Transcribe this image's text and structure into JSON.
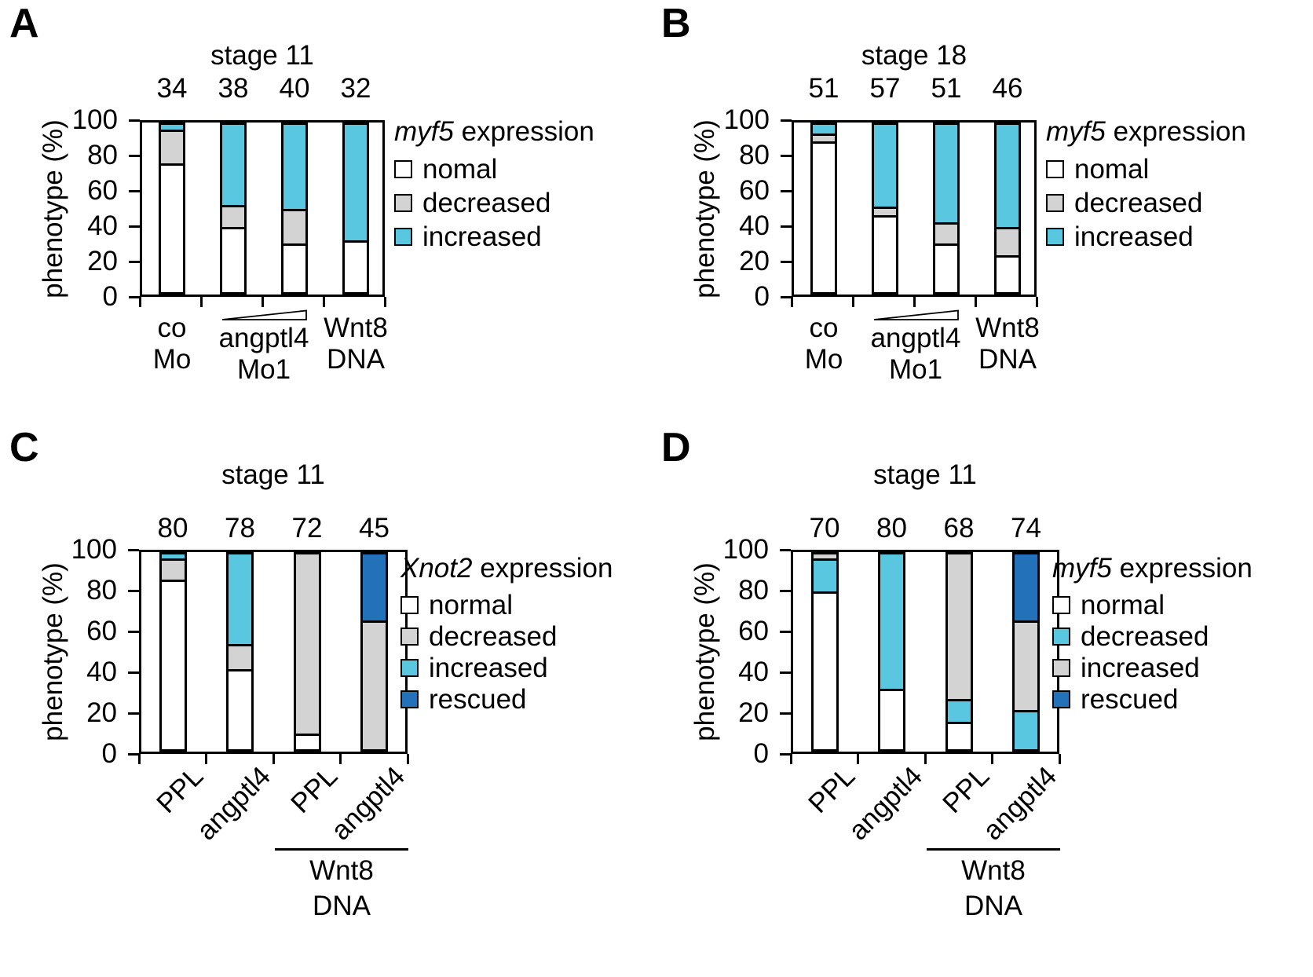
{
  "figure": {
    "y_axis_label": "phenotype (%)",
    "y_ticks": [
      0,
      20,
      40,
      60,
      80,
      100
    ]
  },
  "colors": {
    "normal": "#ffffff",
    "gray": "#d3d3d3",
    "cyan": "#59c7e0",
    "blue": "#2371b8",
    "line": "#000000"
  },
  "panels": [
    {
      "letter": "A",
      "title": "stage 11",
      "layout": "upper",
      "ylabel": "phenotype (%)",
      "legend": {
        "gene": "myf5",
        "rest": " expression",
        "items": [
          {
            "label": "nomal",
            "color": "#ffffff"
          },
          {
            "label": "decreased",
            "color": "#d3d3d3"
          },
          {
            "label": "increased",
            "color": "#59c7e0"
          }
        ]
      },
      "x_axis": {
        "type": "groups",
        "groups": [
          {
            "lines": [
              "co",
              "Mo"
            ],
            "slots": [
              0
            ],
            "ramp": false
          },
          {
            "lines": [
              "angptl4",
              "Mo1"
            ],
            "slots": [
              1,
              2
            ],
            "ramp": true
          },
          {
            "lines": [
              "Wnt8",
              "DNA"
            ],
            "slots": [
              3
            ],
            "ramp": false
          }
        ]
      },
      "chart_data": {
        "type": "bar",
        "stacked": true,
        "title": "stage 11",
        "xlabel": "",
        "ylabel": "phenotype (%)",
        "ylim": [
          0,
          100
        ],
        "grid": false,
        "legend_position": "right",
        "categories": [
          "co Mo",
          "angptl4 Mo1 (low dose)",
          "angptl4 Mo1 (high dose)",
          "Wnt8 DNA"
        ],
        "n_values": [
          34,
          38,
          40,
          32
        ],
        "series": [
          {
            "name": "nomal",
            "color": "#ffffff",
            "values": [
              77,
              39,
              29,
              31
            ]
          },
          {
            "name": "decreased",
            "color": "#d3d3d3",
            "values": [
              20,
              13,
              21,
              0
            ]
          },
          {
            "name": "increased",
            "color": "#59c7e0",
            "values": [
              3,
              48,
              50,
              69
            ]
          }
        ]
      }
    },
    {
      "letter": "B",
      "title": "stage 18",
      "layout": "upper",
      "ylabel": "phenotype (%)",
      "legend": {
        "gene": "myf5",
        "rest": " expression",
        "items": [
          {
            "label": "nomal",
            "color": "#ffffff"
          },
          {
            "label": "decreased",
            "color": "#d3d3d3"
          },
          {
            "label": "increased",
            "color": "#59c7e0"
          }
        ]
      },
      "x_axis": {
        "type": "groups",
        "groups": [
          {
            "lines": [
              "co",
              "Mo"
            ],
            "slots": [
              0
            ],
            "ramp": false
          },
          {
            "lines": [
              "angptl4",
              "Mo1"
            ],
            "slots": [
              1,
              2
            ],
            "ramp": true
          },
          {
            "lines": [
              "Wnt8",
              "DNA"
            ],
            "slots": [
              3
            ],
            "ramp": false
          }
        ]
      },
      "chart_data": {
        "type": "bar",
        "stacked": true,
        "title": "stage 18",
        "xlabel": "",
        "ylabel": "phenotype (%)",
        "ylim": [
          0,
          100
        ],
        "grid": false,
        "legend_position": "right",
        "categories": [
          "co Mo",
          "angptl4 Mo1 (low dose)",
          "angptl4 Mo1 (high dose)",
          "Wnt8 DNA"
        ],
        "n_values": [
          51,
          57,
          51,
          46
        ],
        "series": [
          {
            "name": "nomal",
            "color": "#ffffff",
            "values": [
              90,
              46,
              29,
              22
            ]
          },
          {
            "name": "decreased",
            "color": "#d3d3d3",
            "values": [
              5,
              5,
              13,
              17
            ]
          },
          {
            "name": "increased",
            "color": "#59c7e0",
            "values": [
              5,
              49,
              58,
              61
            ]
          }
        ]
      }
    },
    {
      "letter": "C",
      "title": "stage 11",
      "layout": "lower",
      "ylabel": "phenotype (%)",
      "legend": {
        "gene": "Xnot2",
        "rest": " expression",
        "items": [
          {
            "label": "normal",
            "color": "#ffffff"
          },
          {
            "label": "decreased",
            "color": "#d3d3d3"
          },
          {
            "label": "increased",
            "color": "#59c7e0"
          },
          {
            "label": "rescued",
            "color": "#2371b8"
          }
        ]
      },
      "x_axis": {
        "type": "rotated",
        "labels": [
          "PPL",
          "angptl4",
          "PPL",
          "angptl4"
        ],
        "group_line": {
          "lines": [
            "Wnt8",
            "DNA"
          ],
          "slots": [
            2,
            3
          ]
        }
      },
      "chart_data": {
        "type": "bar",
        "stacked": true,
        "title": "stage 11",
        "xlabel": "",
        "ylabel": "phenotype (%)",
        "ylim": [
          0,
          100
        ],
        "grid": false,
        "legend_position": "right",
        "categories": [
          "PPL",
          "angptl4",
          "PPL + Wnt8 DNA",
          "angptl4 + Wnt8 DNA"
        ],
        "n_values": [
          80,
          78,
          72,
          45
        ],
        "series": [
          {
            "name": "normal",
            "color": "#ffffff",
            "values": [
              87,
              41,
              8,
              0
            ]
          },
          {
            "name": "decreased",
            "color": "#d3d3d3",
            "values": [
              11,
              13,
              92,
              66
            ]
          },
          {
            "name": "increased",
            "color": "#59c7e0",
            "values": [
              2,
              46,
              0,
              0
            ]
          },
          {
            "name": "rescued",
            "color": "#2371b8",
            "values": [
              0,
              0,
              0,
              34
            ]
          }
        ]
      }
    },
    {
      "letter": "D",
      "title": "stage 11",
      "layout": "lower",
      "ylabel": "phenotype (%)",
      "legend": {
        "gene": "myf5",
        "rest": " expression",
        "items": [
          {
            "label": "normal",
            "color": "#ffffff"
          },
          {
            "label": "decreased",
            "color": "#59c7e0"
          },
          {
            "label": "increased",
            "color": "#d3d3d3"
          },
          {
            "label": "rescued",
            "color": "#2371b8"
          }
        ]
      },
      "x_axis": {
        "type": "rotated",
        "labels": [
          "PPL",
          "angptl4",
          "PPL",
          "angptl4"
        ],
        "group_line": {
          "lines": [
            "Wnt8",
            "DNA"
          ],
          "slots": [
            2,
            3
          ]
        }
      },
      "chart_data": {
        "type": "bar",
        "stacked": true,
        "title": "stage 11",
        "xlabel": "",
        "ylabel": "phenotype (%)",
        "ylim": [
          0,
          100
        ],
        "grid": false,
        "legend_position": "right",
        "categories": [
          "PPL",
          "angptl4",
          "PPL + Wnt8 DNA",
          "angptl4 + Wnt8 DNA"
        ],
        "n_values": [
          70,
          80,
          68,
          74
        ],
        "series": [
          {
            "name": "normal",
            "color": "#ffffff",
            "values": [
              81,
              31,
              14,
              0
            ]
          },
          {
            "name": "decreased",
            "color": "#59c7e0",
            "values": [
              17,
              69,
              12,
              20
            ]
          },
          {
            "name": "increased",
            "color": "#d3d3d3",
            "values": [
              2,
              0,
              74,
              46
            ]
          },
          {
            "name": "rescued",
            "color": "#2371b8",
            "values": [
              0,
              0,
              0,
              34
            ]
          }
        ]
      }
    }
  ]
}
